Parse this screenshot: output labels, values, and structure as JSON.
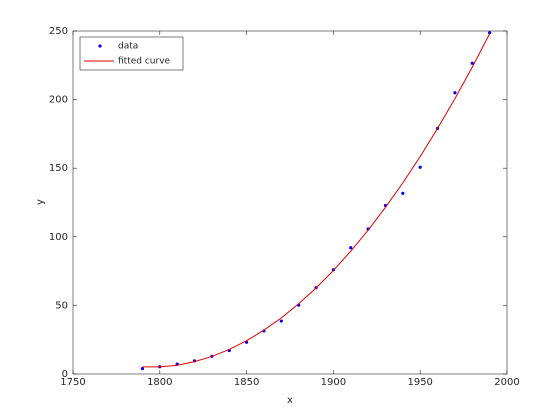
{
  "chart_data": {
    "type": "scatter",
    "x_label": "x",
    "y_label": "y",
    "xlim": [
      1750,
      2000
    ],
    "xticks": [
      1750,
      1800,
      1850,
      1900,
      1950,
      2000
    ],
    "ylim": [
      0,
      250
    ],
    "yticks": [
      0,
      50,
      100,
      150,
      200,
      250
    ],
    "legend": "top-left",
    "series": [
      {
        "name": "data",
        "color": "#0000ff",
        "kind": "points",
        "x": [
          1790,
          1800,
          1810,
          1820,
          1830,
          1840,
          1850,
          1860,
          1870,
          1880,
          1890,
          1900,
          1910,
          1920,
          1930,
          1940,
          1950,
          1960,
          1970,
          1980,
          1990
        ],
        "values": [
          3.9,
          5.3,
          7.2,
          9.6,
          12.9,
          17.1,
          23.1,
          31.4,
          38.6,
          50.2,
          62.9,
          76.0,
          92.0,
          105.7,
          122.8,
          131.7,
          150.7,
          179.0,
          205.0,
          226.5,
          248.7
        ]
      },
      {
        "name": "fitted curve",
        "color": "#e00000",
        "kind": "line",
        "x": [
          1790,
          1800,
          1810,
          1820,
          1830,
          1840,
          1850,
          1860,
          1870,
          1880,
          1890,
          1900,
          1910,
          1920,
          1930,
          1940,
          1950,
          1960,
          1970,
          1980,
          1990
        ],
        "values": [
          5.2,
          5.2,
          6.4,
          9.0,
          12.8,
          17.9,
          24.3,
          32.0,
          40.9,
          51.2,
          62.7,
          75.5,
          89.5,
          104.8,
          121.5,
          139.3,
          158.5,
          179.0,
          200.7,
          223.7,
          248.0
        ]
      }
    ]
  }
}
